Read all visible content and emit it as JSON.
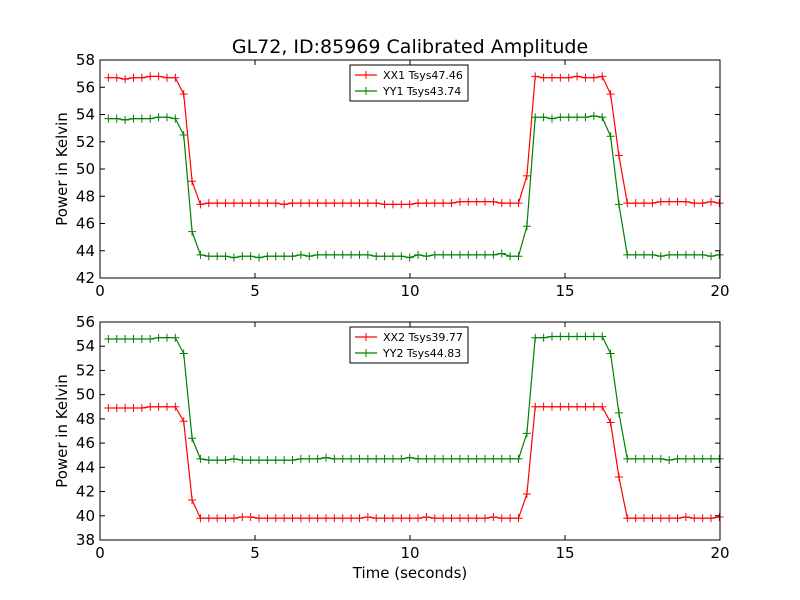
{
  "title": "GL72, ID:85969 Calibrated Amplitude",
  "chart_data": [
    {
      "type": "line",
      "ylabel": "Power in Kelvin",
      "xlabel": "",
      "xlim": [
        0,
        20
      ],
      "ylim": [
        42,
        58
      ],
      "xticks": [
        0,
        5,
        10,
        15,
        20
      ],
      "yticks": [
        42,
        44,
        46,
        48,
        50,
        52,
        54,
        56,
        58
      ],
      "grid": false,
      "legend": "top-center",
      "x": [
        0.27,
        0.54,
        0.81,
        1.08,
        1.35,
        1.62,
        1.89,
        2.16,
        2.43,
        2.7,
        2.97,
        3.24,
        3.51,
        3.78,
        4.05,
        4.32,
        4.59,
        4.86,
        5.13,
        5.4,
        5.67,
        5.94,
        6.21,
        6.48,
        6.75,
        7.02,
        7.29,
        7.56,
        7.83,
        8.1,
        8.37,
        8.64,
        8.91,
        9.18,
        9.45,
        9.72,
        9.99,
        10.26,
        10.53,
        10.8,
        11.07,
        11.34,
        11.61,
        11.88,
        12.15,
        12.42,
        12.69,
        12.96,
        13.23,
        13.5,
        13.77,
        14.04,
        14.31,
        14.58,
        14.85,
        15.12,
        15.39,
        15.66,
        15.93,
        16.2,
        16.47,
        16.74,
        17.01,
        17.28,
        17.55,
        17.82,
        18.09,
        18.36,
        18.63,
        18.9,
        19.17,
        19.44,
        19.71,
        19.98
      ],
      "series": [
        {
          "name": "XX1 Tsys47.46",
          "color": "#ff0000",
          "values": [
            56.7,
            56.7,
            56.6,
            56.7,
            56.7,
            56.8,
            56.8,
            56.7,
            56.7,
            55.5,
            49.1,
            47.4,
            47.5,
            47.5,
            47.5,
            47.5,
            47.5,
            47.5,
            47.5,
            47.5,
            47.5,
            47.4,
            47.5,
            47.5,
            47.5,
            47.5,
            47.5,
            47.5,
            47.5,
            47.5,
            47.5,
            47.5,
            47.5,
            47.4,
            47.4,
            47.4,
            47.4,
            47.5,
            47.5,
            47.5,
            47.5,
            47.5,
            47.6,
            47.6,
            47.6,
            47.6,
            47.6,
            47.5,
            47.5,
            47.5,
            49.5,
            56.8,
            56.7,
            56.7,
            56.7,
            56.7,
            56.8,
            56.7,
            56.7,
            56.8,
            55.5,
            51.0,
            47.5,
            47.5,
            47.5,
            47.5,
            47.6,
            47.6,
            47.6,
            47.6,
            47.5,
            47.5,
            47.6,
            47.5
          ]
        },
        {
          "name": "YY1 Tsys43.74",
          "color": "#008000",
          "values": [
            53.7,
            53.7,
            53.6,
            53.7,
            53.7,
            53.7,
            53.8,
            53.8,
            53.7,
            52.5,
            45.4,
            43.7,
            43.6,
            43.6,
            43.6,
            43.5,
            43.6,
            43.6,
            43.5,
            43.6,
            43.6,
            43.6,
            43.6,
            43.7,
            43.6,
            43.7,
            43.7,
            43.7,
            43.7,
            43.7,
            43.7,
            43.7,
            43.6,
            43.6,
            43.6,
            43.6,
            43.5,
            43.7,
            43.6,
            43.7,
            43.7,
            43.7,
            43.7,
            43.7,
            43.7,
            43.7,
            43.7,
            43.8,
            43.6,
            43.6,
            45.8,
            53.8,
            53.8,
            53.7,
            53.8,
            53.8,
            53.8,
            53.8,
            53.9,
            53.8,
            52.4,
            47.4,
            43.7,
            43.7,
            43.7,
            43.7,
            43.6,
            43.7,
            43.7,
            43.7,
            43.7,
            43.7,
            43.6,
            43.7
          ]
        }
      ]
    },
    {
      "type": "line",
      "ylabel": "Power in Kelvin",
      "xlabel": "Time (seconds)",
      "xlim": [
        0,
        20
      ],
      "ylim": [
        38,
        56
      ],
      "xticks": [
        0,
        5,
        10,
        15,
        20
      ],
      "yticks": [
        38,
        40,
        42,
        44,
        46,
        48,
        50,
        52,
        54,
        56
      ],
      "grid": false,
      "legend": "top-center",
      "x": [
        0.27,
        0.54,
        0.81,
        1.08,
        1.35,
        1.62,
        1.89,
        2.16,
        2.43,
        2.7,
        2.97,
        3.24,
        3.51,
        3.78,
        4.05,
        4.32,
        4.59,
        4.86,
        5.13,
        5.4,
        5.67,
        5.94,
        6.21,
        6.48,
        6.75,
        7.02,
        7.29,
        7.56,
        7.83,
        8.1,
        8.37,
        8.64,
        8.91,
        9.18,
        9.45,
        9.72,
        9.99,
        10.26,
        10.53,
        10.8,
        11.07,
        11.34,
        11.61,
        11.88,
        12.15,
        12.42,
        12.69,
        12.96,
        13.23,
        13.5,
        13.77,
        14.04,
        14.31,
        14.58,
        14.85,
        15.12,
        15.39,
        15.66,
        15.93,
        16.2,
        16.47,
        16.74,
        17.01,
        17.28,
        17.55,
        17.82,
        18.09,
        18.36,
        18.63,
        18.9,
        19.17,
        19.44,
        19.71,
        19.98
      ],
      "series": [
        {
          "name": "XX2 Tsys39.77",
          "color": "#ff0000",
          "values": [
            48.9,
            48.9,
            48.9,
            48.9,
            48.9,
            49.0,
            49.0,
            49.0,
            49.0,
            47.8,
            41.3,
            39.8,
            39.8,
            39.8,
            39.8,
            39.8,
            39.9,
            39.9,
            39.8,
            39.8,
            39.8,
            39.8,
            39.8,
            39.8,
            39.8,
            39.8,
            39.8,
            39.8,
            39.8,
            39.8,
            39.8,
            39.9,
            39.8,
            39.8,
            39.8,
            39.8,
            39.8,
            39.8,
            39.9,
            39.8,
            39.8,
            39.8,
            39.8,
            39.8,
            39.8,
            39.8,
            39.9,
            39.8,
            39.8,
            39.8,
            41.8,
            49.0,
            49.0,
            49.0,
            49.0,
            49.0,
            49.0,
            49.0,
            49.0,
            49.0,
            47.7,
            43.2,
            39.8,
            39.8,
            39.8,
            39.8,
            39.8,
            39.8,
            39.8,
            39.9,
            39.8,
            39.8,
            39.8,
            39.9
          ]
        },
        {
          "name": "YY2 Tsys44.83",
          "color": "#008000",
          "values": [
            54.6,
            54.6,
            54.6,
            54.6,
            54.6,
            54.6,
            54.7,
            54.7,
            54.7,
            53.4,
            46.4,
            44.7,
            44.6,
            44.6,
            44.6,
            44.7,
            44.6,
            44.6,
            44.6,
            44.6,
            44.6,
            44.6,
            44.6,
            44.7,
            44.7,
            44.7,
            44.8,
            44.7,
            44.7,
            44.7,
            44.7,
            44.7,
            44.7,
            44.7,
            44.7,
            44.7,
            44.8,
            44.7,
            44.7,
            44.7,
            44.7,
            44.7,
            44.7,
            44.7,
            44.7,
            44.7,
            44.7,
            44.7,
            44.7,
            44.7,
            46.8,
            54.7,
            54.7,
            54.8,
            54.8,
            54.8,
            54.8,
            54.8,
            54.8,
            54.8,
            53.4,
            48.5,
            44.7,
            44.7,
            44.7,
            44.7,
            44.7,
            44.6,
            44.7,
            44.7,
            44.7,
            44.7,
            44.7,
            44.7
          ]
        }
      ]
    }
  ]
}
